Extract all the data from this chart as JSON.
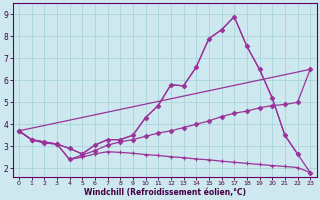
{
  "xlabel": "Windchill (Refroidissement éolien,°C)",
  "xlim": [
    -0.5,
    23.5
  ],
  "ylim": [
    1.6,
    9.5
  ],
  "yticks": [
    2,
    3,
    4,
    5,
    6,
    7,
    8,
    9
  ],
  "xticks": [
    0,
    1,
    2,
    3,
    4,
    5,
    6,
    7,
    8,
    9,
    10,
    11,
    12,
    13,
    14,
    15,
    16,
    17,
    18,
    19,
    20,
    21,
    22,
    23
  ],
  "bg_color": "#cde8ee",
  "line_color": "#993399",
  "grid_color": "#b0d8e0",
  "line1_x": [
    0,
    1,
    2,
    3,
    4,
    5,
    6,
    7,
    8,
    9,
    10,
    11,
    12,
    13,
    14,
    15,
    16,
    17,
    18,
    19,
    20,
    21,
    22
  ],
  "line1_y": [
    3.7,
    3.3,
    3.2,
    3.1,
    2.9,
    2.65,
    3.05,
    3.3,
    3.3,
    3.5,
    4.3,
    4.85,
    5.8,
    5.75,
    6.6,
    7.9,
    8.3,
    8.9,
    7.55,
    6.5,
    5.2,
    3.5,
    2.65
  ],
  "line2_x": [
    0,
    1,
    2,
    3,
    4,
    5,
    6,
    7,
    8,
    9,
    10,
    11,
    12,
    13,
    14,
    15,
    16,
    17,
    18,
    19,
    20,
    21,
    22,
    23
  ],
  "line2_y": [
    3.7,
    3.3,
    3.2,
    3.1,
    2.9,
    2.65,
    3.05,
    3.3,
    3.3,
    3.5,
    4.3,
    4.85,
    5.8,
    5.75,
    6.6,
    7.9,
    8.3,
    8.9,
    7.55,
    6.5,
    5.2,
    3.5,
    2.65,
    1.8
  ],
  "line3_x": [
    0,
    1,
    2,
    3,
    4,
    5,
    6,
    7,
    8,
    9,
    10,
    11,
    12,
    13,
    14,
    15,
    16,
    17,
    18,
    19,
    20,
    21,
    22,
    23
  ],
  "line3_y": [
    3.7,
    3.3,
    3.15,
    3.1,
    2.4,
    2.6,
    2.8,
    3.05,
    3.2,
    3.3,
    3.45,
    3.6,
    3.7,
    3.85,
    4.0,
    4.15,
    4.35,
    4.5,
    4.6,
    4.75,
    4.85,
    4.9,
    5.0,
    6.5
  ],
  "line4_x": [
    0,
    1,
    2,
    3,
    4,
    5,
    6,
    7,
    8,
    9,
    10,
    11,
    12,
    13,
    14,
    15,
    16,
    17,
    18,
    19,
    20,
    21,
    22,
    23
  ],
  "line4_y": [
    3.7,
    3.3,
    3.15,
    3.1,
    2.4,
    2.5,
    2.65,
    2.75,
    2.72,
    2.68,
    2.62,
    2.58,
    2.52,
    2.48,
    2.42,
    2.38,
    2.32,
    2.27,
    2.22,
    2.17,
    2.12,
    2.08,
    2.03,
    1.8
  ],
  "line5_x": [
    0,
    23
  ],
  "line5_y": [
    3.7,
    6.5
  ]
}
